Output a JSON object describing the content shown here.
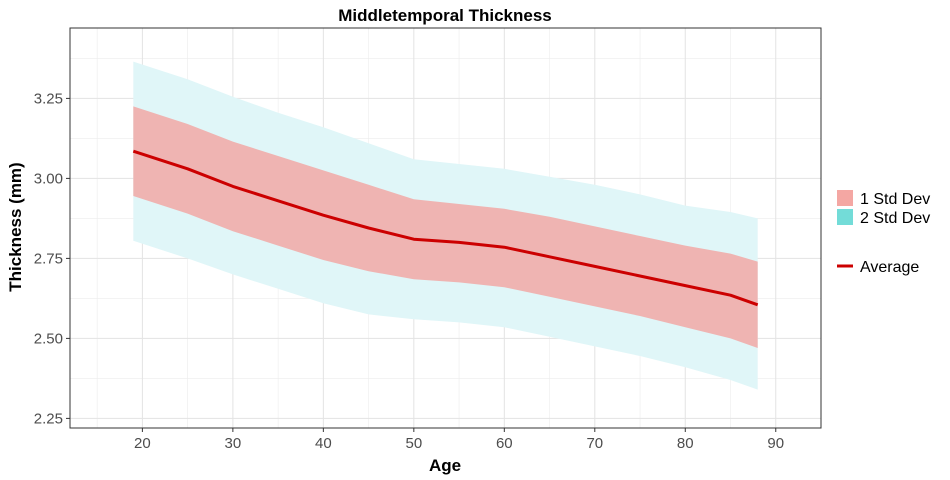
{
  "chart_data": {
    "type": "area",
    "title": "Middletemporal Thickness",
    "xlabel": "Age",
    "ylabel": "Thickness (mm)",
    "xlim": [
      12,
      95
    ],
    "ylim": [
      2.22,
      3.47
    ],
    "xticks": [
      20,
      30,
      40,
      50,
      60,
      70,
      80,
      90
    ],
    "yticks": [
      2.25,
      2.5,
      2.75,
      3.0,
      3.25
    ],
    "ytick_labels": [
      "2.25",
      "2.50",
      "2.75",
      "3.00",
      "3.25"
    ],
    "grid": true,
    "legend_position": "right",
    "x": [
      19,
      25,
      30,
      35,
      40,
      45,
      50,
      55,
      60,
      65,
      70,
      75,
      80,
      85,
      88
    ],
    "series": [
      {
        "name": "Average",
        "values": [
          3.085,
          3.03,
          2.975,
          2.93,
          2.885,
          2.845,
          2.81,
          2.8,
          2.785,
          2.755,
          2.725,
          2.695,
          2.665,
          2.635,
          2.605
        ]
      },
      {
        "name": "1 Std Dev",
        "lower": [
          2.945,
          2.89,
          2.835,
          2.79,
          2.745,
          2.71,
          2.685,
          2.675,
          2.66,
          2.63,
          2.6,
          2.57,
          2.535,
          2.5,
          2.47
        ],
        "upper": [
          3.225,
          3.17,
          3.115,
          3.07,
          3.025,
          2.98,
          2.935,
          2.92,
          2.905,
          2.88,
          2.85,
          2.82,
          2.79,
          2.765,
          2.74
        ]
      },
      {
        "name": "2 Std Dev",
        "lower": [
          2.805,
          2.75,
          2.7,
          2.655,
          2.61,
          2.575,
          2.56,
          2.55,
          2.535,
          2.505,
          2.475,
          2.445,
          2.41,
          2.37,
          2.34
        ],
        "upper": [
          3.365,
          3.31,
          3.255,
          3.205,
          3.16,
          3.11,
          3.06,
          3.045,
          3.03,
          3.005,
          2.98,
          2.95,
          2.915,
          2.895,
          2.875
        ]
      }
    ],
    "legend": {
      "bands": [
        "1 Std Dev",
        "2 Std Dev"
      ],
      "lines": [
        "Average"
      ]
    },
    "colors": {
      "average": "#cc0000",
      "sd1_fill": "#f4a7a3",
      "sd2_fill": "#73dcd8",
      "sd2_band_fill": "#e0f6f8",
      "sd1_band_fill": "#efb4b2"
    }
  }
}
